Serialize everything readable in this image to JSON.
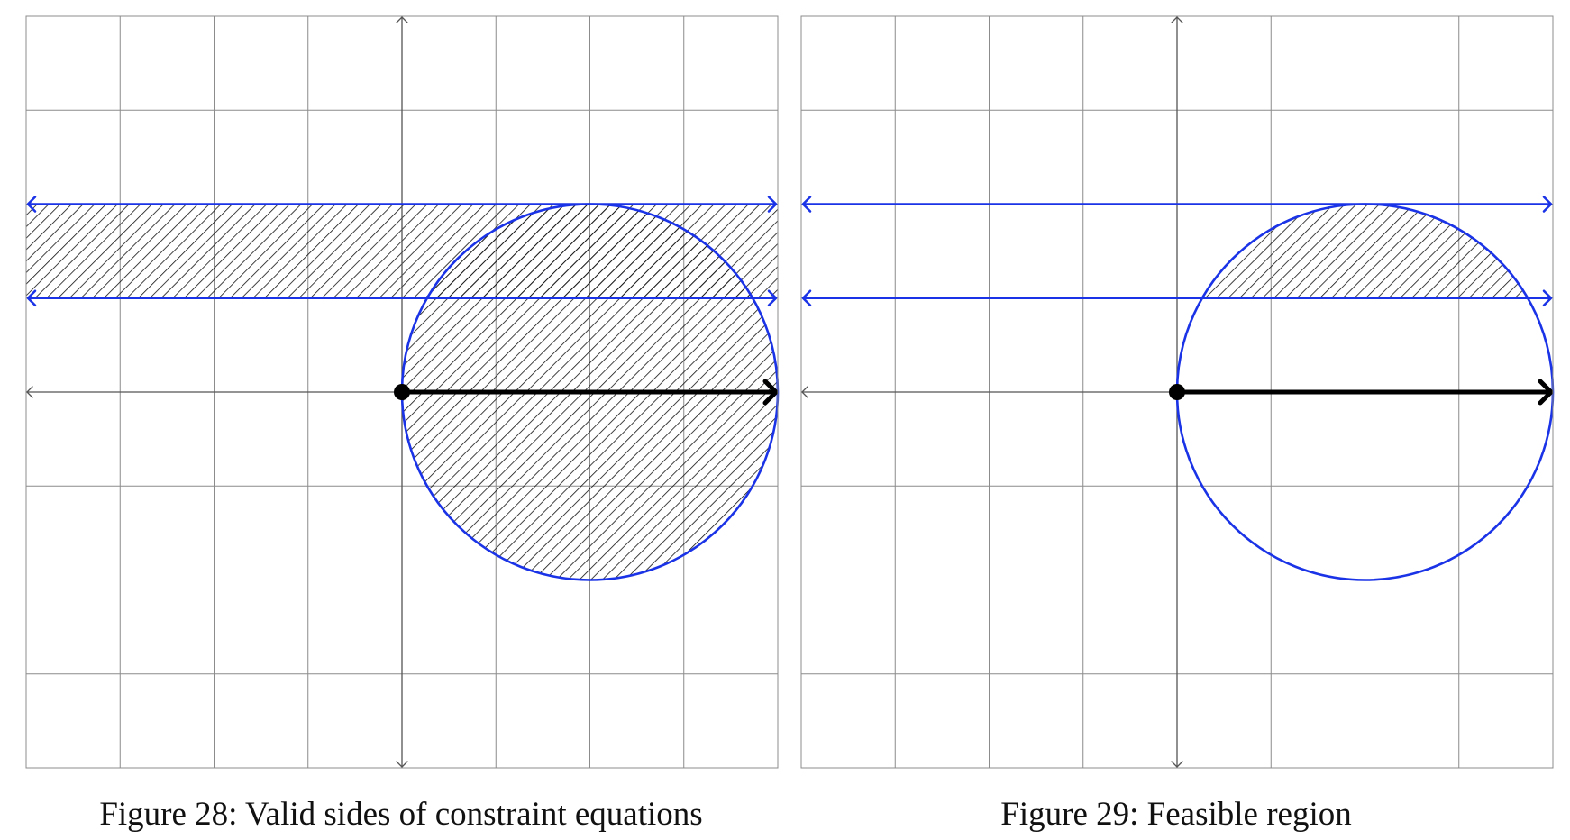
{
  "figures": [
    {
      "caption_number": "Figure 28:",
      "caption_text": "Valid sides of constraint equations",
      "hatch_region": "band-and-disk"
    },
    {
      "caption_number": "Figure 29:",
      "caption_text": "Feasible region",
      "hatch_region": "band-intersect-disk"
    }
  ],
  "grid": {
    "x_range": [
      -4,
      4
    ],
    "y_range": [
      -4,
      4
    ],
    "step": 1
  },
  "constraints": {
    "circle": {
      "center": [
        2,
        0
      ],
      "radius": 2
    },
    "lines_y": [
      1,
      2
    ]
  },
  "ray": {
    "from": [
      0,
      0
    ],
    "to": [
      4,
      0
    ]
  },
  "colors": {
    "constraint": "#1a33e6",
    "grid": "#8c8c8c",
    "axis": "#555555",
    "hatch": "#111111",
    "ray": "#000000"
  }
}
